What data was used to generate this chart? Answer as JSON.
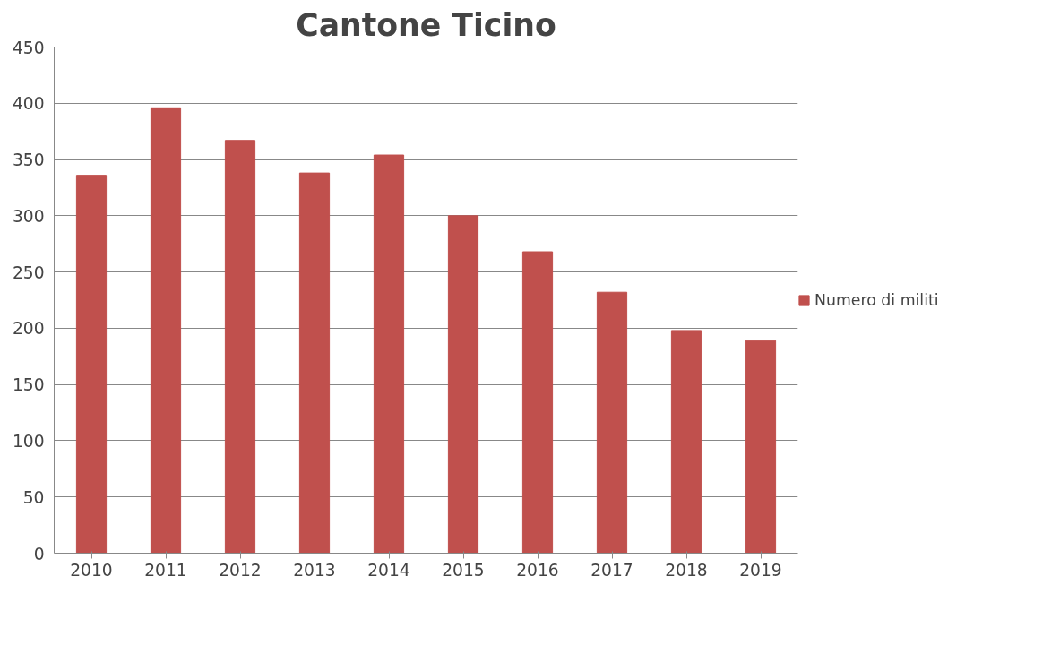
{
  "chart_data": {
    "type": "bar",
    "title": "Cantone Ticino",
    "categories": [
      "2010",
      "2011",
      "2012",
      "2013",
      "2014",
      "2015",
      "2016",
      "2017",
      "2018",
      "2019"
    ],
    "series": [
      {
        "name": "Numero di militi",
        "color": "#c0504d",
        "values": [
          336,
          396,
          367,
          338,
          354,
          300,
          268,
          232,
          198,
          189
        ]
      }
    ],
    "ylim": [
      0,
      450
    ],
    "yticks": [
      0,
      50,
      100,
      150,
      200,
      250,
      300,
      350,
      400,
      450
    ],
    "grid": "y",
    "legend": "right"
  }
}
